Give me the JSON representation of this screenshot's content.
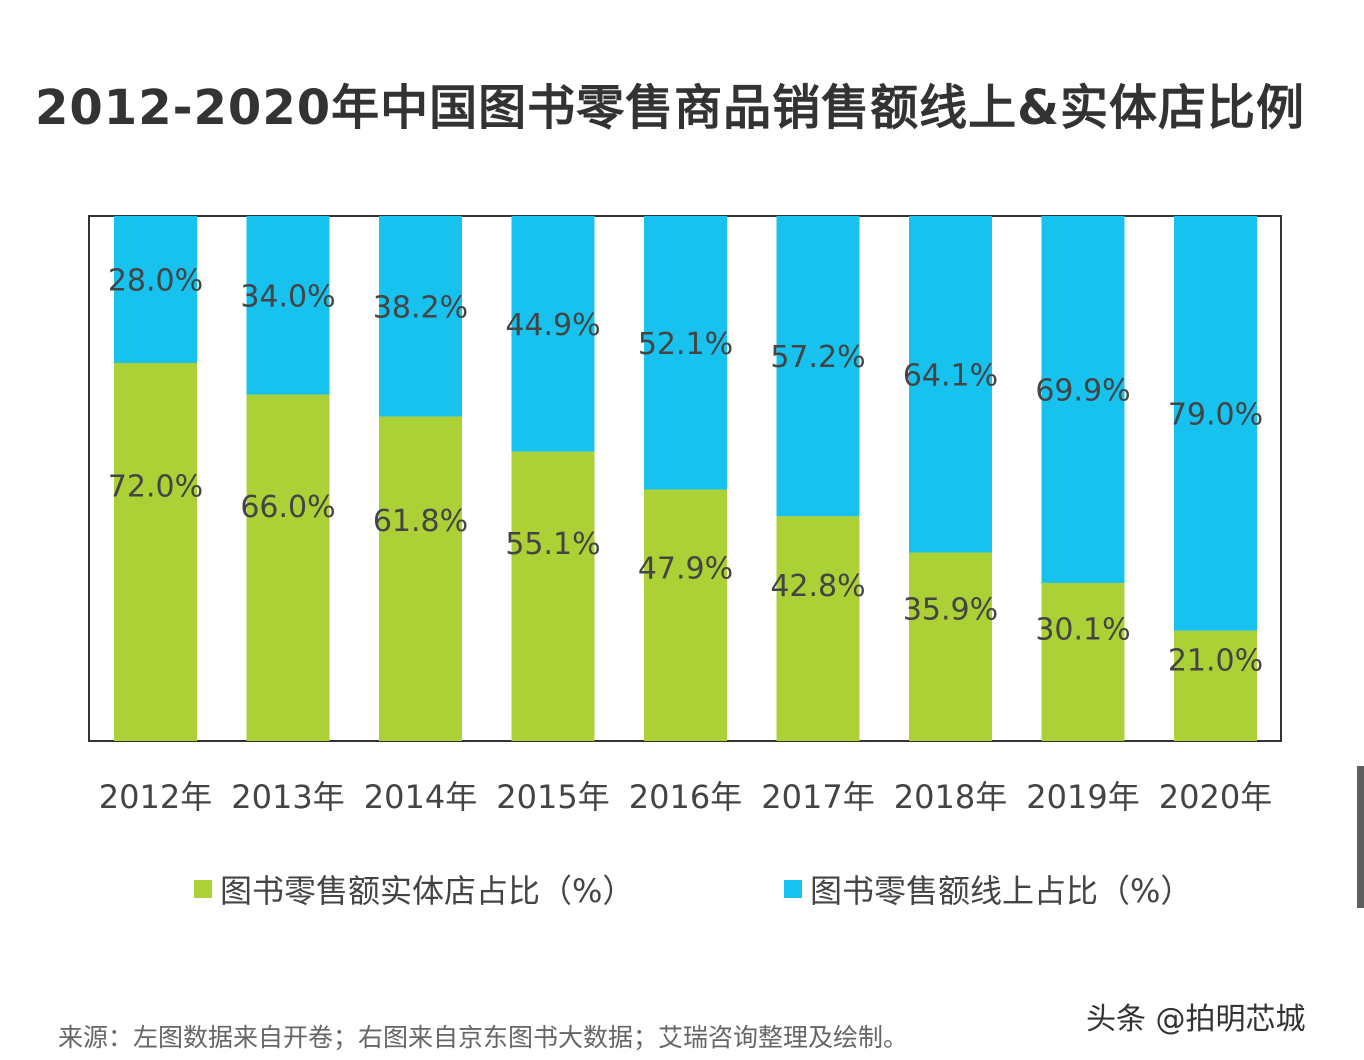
{
  "title": "2012-2020年中国图书零售商品销售额线上&实体店比例",
  "chart_data": {
    "type": "bar",
    "stacked": true,
    "categories": [
      "2012年",
      "2013年",
      "2014年",
      "2015年",
      "2016年",
      "2017年",
      "2018年",
      "2019年",
      "2020年"
    ],
    "series": [
      {
        "name": "图书零售额实体店占比（%）",
        "color": "#acd136",
        "values": [
          72.0,
          66.0,
          61.8,
          55.1,
          47.9,
          42.8,
          35.9,
          30.1,
          21.0
        ],
        "labels": [
          "72.0%",
          "66.0%",
          "61.8%",
          "55.1%",
          "47.9%",
          "42.8%",
          "35.9%",
          "30.1%",
          "21.0%"
        ]
      },
      {
        "name": "图书零售额线上占比（%）",
        "color": "#17c2ee",
        "values": [
          28.0,
          34.0,
          38.2,
          44.9,
          52.1,
          57.2,
          64.1,
          69.9,
          79.0
        ],
        "labels": [
          "28.0%",
          "34.0%",
          "38.2%",
          "44.9%",
          "52.1%",
          "57.2%",
          "64.1%",
          "69.9%",
          "79.0%"
        ]
      }
    ],
    "ylim": [
      0,
      100
    ],
    "legend_position": "bottom"
  },
  "legend": {
    "green_label": "图书零售额实体店占比（%）",
    "blue_label": "图书零售额线上占比（%）"
  },
  "source": "来源：左图数据来自开卷；右图来自京东图书大数据；艾瑞咨询整理及绘制。",
  "watermark": "头条 @拍明芯城"
}
